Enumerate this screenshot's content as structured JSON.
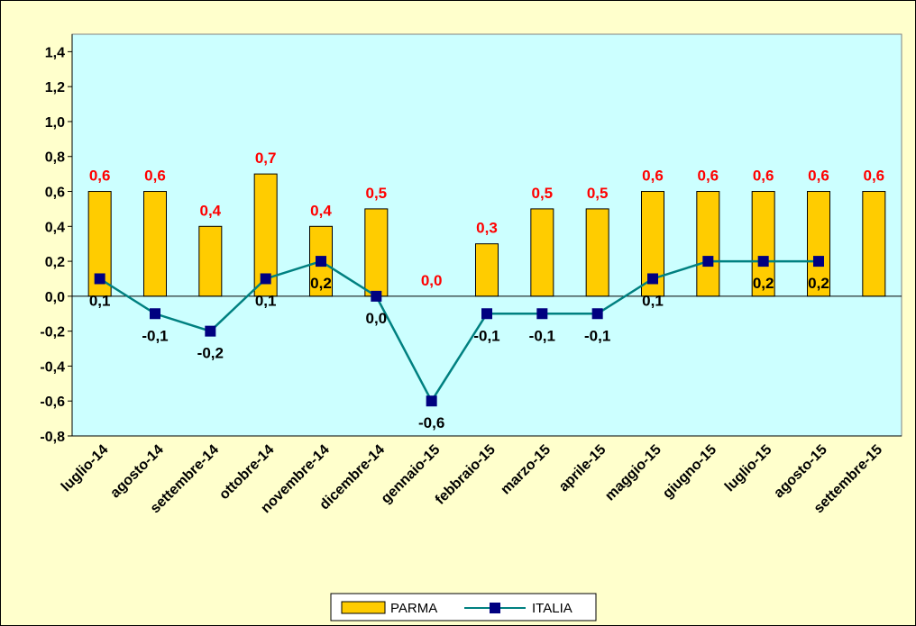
{
  "chart_data": {
    "type": "bar",
    "categories": [
      "luglio-14",
      "agosto-14",
      "settembre-14",
      "ottobre-14",
      "novembre-14",
      "dicembre-14",
      "gennaio-15",
      "febbraio-15",
      "marzo-15",
      "aprile-15",
      "maggio-15",
      "giugno-15",
      "luglio-15",
      "agosto-15",
      "settembre-15"
    ],
    "series": [
      {
        "name": "PARMA",
        "kind": "bar",
        "values": [
          0.6,
          0.6,
          0.4,
          0.7,
          0.4,
          0.5,
          0.0,
          0.3,
          0.5,
          0.5,
          0.6,
          0.6,
          0.6,
          0.6,
          0.6
        ],
        "labels": [
          "0,6",
          "0,6",
          "0,4",
          "0,7",
          "0,4",
          "0,5",
          "0,0",
          "0,3",
          "0,5",
          "0,5",
          "0,6",
          "0,6",
          "0,6",
          "0,6",
          "0,6"
        ]
      },
      {
        "name": "ITALIA",
        "kind": "line",
        "values": [
          0.1,
          -0.1,
          -0.2,
          0.1,
          0.2,
          0.0,
          -0.6,
          -0.1,
          -0.1,
          -0.1,
          0.1,
          0.2,
          0.2,
          0.2,
          null
        ],
        "labels": [
          "0,1",
          "-0,1",
          "-0,2",
          "0,1",
          "0,2",
          "0,0",
          "-0,6",
          "-0,1",
          "-0,1",
          "-0,1",
          "0,1",
          "",
          "0,2",
          "0,2",
          ""
        ]
      }
    ],
    "yticks": [
      "1,4",
      "1,2",
      "1,0",
      "0,8",
      "0,6",
      "0,4",
      "0,2",
      "0,0",
      "-0,2",
      "-0,4",
      "-0,6",
      "-0,8"
    ],
    "ylim": [
      -0.8,
      1.5
    ],
    "grid": false,
    "legend_position": "bottom-center",
    "colors": {
      "plot_bg": "#ccffff",
      "chart_bg": "#ffffcc",
      "bar_fill": "#ffcc00",
      "line": "#008080",
      "marker": "#000080",
      "bar_label": "#ff0000",
      "line_label": "#000000"
    }
  },
  "legend": {
    "parma": "PARMA",
    "italia": "ITALIA"
  }
}
